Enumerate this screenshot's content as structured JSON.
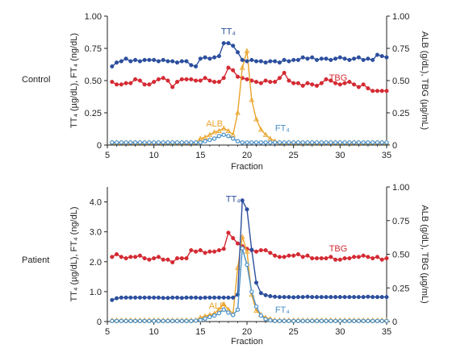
{
  "chart_data": [
    {
      "type": "line",
      "row_label": "Control",
      "xlabel": "Fraction",
      "ylabel_left": "TT₄ (µg/dL), FT₄ (ng/dL)",
      "ylabel_right": "ALB (g/dL), TBG (µg/mL)",
      "xlim": [
        5,
        35
      ],
      "ylim_left": [
        0,
        1.0
      ],
      "ylim_right": [
        0,
        1.0
      ],
      "x_ticks": [
        "5",
        "10",
        "15",
        "20",
        "25",
        "30",
        "35"
      ],
      "y_ticks_left": [
        "0",
        "0.25",
        "0.50",
        "0.75",
        "1.00"
      ],
      "y_ticks_right": [
        "0",
        "0.25",
        "0.50",
        "0.75",
        "1.00"
      ],
      "x": [
        5.5,
        6,
        6.5,
        7,
        7.5,
        8,
        8.5,
        9,
        9.5,
        10,
        10.5,
        11,
        11.5,
        12,
        12.5,
        13,
        13.5,
        14,
        14.5,
        15,
        15.5,
        16,
        16.5,
        17,
        17.5,
        18,
        18.5,
        19,
        19.5,
        20,
        20.5,
        21,
        21.5,
        22,
        22.5,
        23,
        23.5,
        24,
        24.5,
        25,
        25.5,
        26,
        26.5,
        27,
        27.5,
        28,
        28.5,
        29,
        29.5,
        30,
        30.5,
        31,
        31.5,
        32,
        32.5,
        33,
        33.5,
        34,
        34.5,
        35
      ],
      "series": [
        {
          "name": "TT₄",
          "axis": "left",
          "color": "#2c4f9e",
          "marker": "circle",
          "label_x": 18.0,
          "label_y": 0.86,
          "values": [
            0.61,
            0.64,
            0.65,
            0.67,
            0.65,
            0.66,
            0.65,
            0.66,
            0.66,
            0.66,
            0.65,
            0.66,
            0.65,
            0.65,
            0.64,
            0.65,
            0.65,
            0.62,
            0.61,
            0.67,
            0.68,
            0.67,
            0.68,
            0.69,
            0.79,
            0.79,
            0.77,
            0.72,
            0.66,
            0.65,
            0.66,
            0.65,
            0.65,
            0.64,
            0.65,
            0.65,
            0.64,
            0.66,
            0.65,
            0.66,
            0.66,
            0.68,
            0.67,
            0.68,
            0.66,
            0.67,
            0.67,
            0.66,
            0.67,
            0.68,
            0.67,
            0.66,
            0.67,
            0.68,
            0.66,
            0.67,
            0.66,
            0.7,
            0.69,
            0.68
          ]
        },
        {
          "name": "TBG",
          "axis": "right",
          "color": "#d42a33",
          "marker": "circle",
          "label_x": 29.8,
          "label_y": 0.5,
          "values": [
            0.49,
            0.47,
            0.47,
            0.48,
            0.48,
            0.51,
            0.5,
            0.47,
            0.47,
            0.49,
            0.51,
            0.52,
            0.5,
            0.45,
            0.49,
            0.51,
            0.51,
            0.51,
            0.5,
            0.5,
            0.52,
            0.5,
            0.49,
            0.49,
            0.52,
            0.6,
            0.58,
            0.53,
            0.52,
            0.51,
            0.5,
            0.49,
            0.48,
            0.5,
            0.49,
            0.49,
            0.52,
            0.56,
            0.5,
            0.48,
            0.48,
            0.46,
            0.48,
            0.47,
            0.46,
            0.48,
            0.51,
            0.5,
            0.48,
            0.47,
            0.48,
            0.49,
            0.47,
            0.45,
            0.47,
            0.44,
            0.42,
            0.42,
            0.42,
            0.42
          ]
        },
        {
          "name": "ALB",
          "axis": "right",
          "color": "#eaa32a",
          "marker": "triangle",
          "label_x": 16.5,
          "label_y": 0.145,
          "values": [
            0.02,
            0.02,
            0.02,
            0.02,
            0.02,
            0.02,
            0.02,
            0.02,
            0.02,
            0.02,
            0.02,
            0.02,
            0.02,
            0.02,
            0.02,
            0.02,
            0.02,
            0.02,
            0.02,
            0.05,
            0.06,
            0.08,
            0.1,
            0.11,
            0.13,
            0.11,
            0.08,
            0.25,
            0.6,
            0.73,
            0.35,
            0.2,
            0.12,
            0.08,
            0.05,
            0.03,
            0.02,
            0.02,
            0.02,
            0.02,
            0.02,
            0.02,
            0.02,
            0.02,
            0.02,
            0.02,
            0.02,
            0.02,
            0.02,
            0.02,
            0.02,
            0.02,
            0.02,
            0.02,
            0.02,
            0.02,
            0.02,
            0.02,
            0.02,
            0.02
          ]
        },
        {
          "name": "FT₄",
          "axis": "left",
          "color": "#4a90c8",
          "marker": "open-circle",
          "label_x": 23.8,
          "label_y": 0.11,
          "values": [
            0.02,
            0.02,
            0.02,
            0.02,
            0.02,
            0.02,
            0.02,
            0.02,
            0.02,
            0.02,
            0.02,
            0.02,
            0.02,
            0.02,
            0.02,
            0.02,
            0.02,
            0.02,
            0.02,
            0.02,
            0.03,
            0.04,
            0.05,
            0.07,
            0.08,
            0.07,
            0.05,
            0.03,
            0.02,
            0.02,
            0.02,
            0.02,
            0.02,
            0.02,
            0.02,
            0.02,
            0.02,
            0.02,
            0.02,
            0.02,
            0.02,
            0.02,
            0.02,
            0.02,
            0.02,
            0.02,
            0.02,
            0.02,
            0.02,
            0.02,
            0.02,
            0.02,
            0.02,
            0.02,
            0.02,
            0.02,
            0.02,
            0.02,
            0.02,
            0.02
          ]
        }
      ]
    },
    {
      "type": "line",
      "row_label": "Patient",
      "xlabel": "Fraction",
      "ylabel_left": "TT₄ (µg/dL), FT₄ (ng/dL)",
      "ylabel_right": "ALB (g/dL), TBG (µg/mL)",
      "xlim": [
        5,
        35
      ],
      "ylim_left": [
        0,
        4.5
      ],
      "ylim_right": [
        0,
        1.0
      ],
      "x_ticks": [
        "5",
        "10",
        "15",
        "20",
        "25",
        "30",
        "35"
      ],
      "y_ticks_left": [
        "0",
        "1.0",
        "2.0",
        "3.0",
        "4.0"
      ],
      "y_ticks_right": [
        "0",
        "0.25",
        "0.50",
        "0.75",
        "1.00"
      ],
      "x": [
        5.5,
        6,
        6.5,
        7,
        7.5,
        8,
        8.5,
        9,
        9.5,
        10,
        10.5,
        11,
        11.5,
        12,
        12.5,
        13,
        13.5,
        14,
        14.5,
        15,
        15.5,
        16,
        16.5,
        17,
        17.5,
        18,
        18.5,
        19,
        19.5,
        20,
        20.5,
        21,
        21.5,
        22,
        22.5,
        23,
        23.5,
        24,
        24.5,
        25,
        25.5,
        26,
        26.5,
        27,
        27.5,
        28,
        28.5,
        29,
        29.5,
        30,
        30.5,
        31,
        31.5,
        32,
        32.5,
        33,
        33.5,
        34,
        34.5,
        35
      ],
      "series": [
        {
          "name": "TT₄",
          "axis": "left",
          "color": "#2c4f9e",
          "marker": "circle",
          "label_x": 18.5,
          "label_y": 4.0,
          "values": [
            0.72,
            0.78,
            0.8,
            0.8,
            0.8,
            0.8,
            0.8,
            0.8,
            0.8,
            0.8,
            0.8,
            0.79,
            0.79,
            0.8,
            0.8,
            0.79,
            0.8,
            0.8,
            0.8,
            0.79,
            0.8,
            0.8,
            0.8,
            0.8,
            0.8,
            0.8,
            0.8,
            0.9,
            4.05,
            3.75,
            2.4,
            1.3,
            0.95,
            0.88,
            0.85,
            0.83,
            0.82,
            0.82,
            0.82,
            0.81,
            0.82,
            0.82,
            0.83,
            0.82,
            0.82,
            0.82,
            0.82,
            0.82,
            0.82,
            0.82,
            0.82,
            0.82,
            0.82,
            0.82,
            0.82,
            0.83,
            0.82,
            0.82,
            0.82,
            0.82
          ]
        },
        {
          "name": "TBG",
          "axis": "right",
          "color": "#d42a33",
          "marker": "circle",
          "label_x": 29.8,
          "label_y": 0.52,
          "values": [
            0.48,
            0.5,
            0.48,
            0.47,
            0.48,
            0.48,
            0.49,
            0.47,
            0.46,
            0.47,
            0.48,
            0.46,
            0.46,
            0.44,
            0.47,
            0.47,
            0.47,
            0.53,
            0.52,
            0.53,
            0.51,
            0.52,
            0.52,
            0.53,
            0.54,
            0.66,
            0.62,
            0.58,
            0.56,
            0.54,
            0.53,
            0.52,
            0.53,
            0.53,
            0.51,
            0.49,
            0.48,
            0.48,
            0.49,
            0.49,
            0.5,
            0.48,
            0.49,
            0.47,
            0.47,
            0.47,
            0.47,
            0.48,
            0.46,
            0.46,
            0.47,
            0.47,
            0.48,
            0.48,
            0.49,
            0.48,
            0.47,
            0.48,
            0.46,
            0.47
          ]
        },
        {
          "name": "ALB",
          "axis": "right",
          "color": "#eaa32a",
          "marker": "triangle",
          "label_x": 16.8,
          "label_y": 0.095,
          "values": [
            0.01,
            0.01,
            0.01,
            0.01,
            0.01,
            0.01,
            0.01,
            0.01,
            0.01,
            0.01,
            0.01,
            0.01,
            0.01,
            0.01,
            0.01,
            0.01,
            0.01,
            0.01,
            0.01,
            0.03,
            0.04,
            0.05,
            0.06,
            0.09,
            0.13,
            0.09,
            0.06,
            0.4,
            0.63,
            0.52,
            0.2,
            0.08,
            0.05,
            0.03,
            0.02,
            0.01,
            0.01,
            0.01,
            0.01,
            0.01,
            0.01,
            0.01,
            0.01,
            0.01,
            0.01,
            0.01,
            0.01,
            0.01,
            0.01,
            0.01,
            0.01,
            0.01,
            0.01,
            0.01,
            0.01,
            0.01,
            0.01,
            0.01,
            0.01,
            0.01
          ]
        },
        {
          "name": "FT₄",
          "axis": "left",
          "color": "#4a90c8",
          "marker": "open-circle",
          "label_x": 23.8,
          "label_y": 0.3,
          "values": [
            0.02,
            0.02,
            0.02,
            0.02,
            0.02,
            0.02,
            0.02,
            0.02,
            0.02,
            0.02,
            0.02,
            0.02,
            0.02,
            0.02,
            0.02,
            0.02,
            0.02,
            0.02,
            0.03,
            0.05,
            0.1,
            0.15,
            0.2,
            0.28,
            0.4,
            0.3,
            0.22,
            0.4,
            2.45,
            1.9,
            1.0,
            0.5,
            0.2,
            0.08,
            0.04,
            0.02,
            0.02,
            0.02,
            0.02,
            0.02,
            0.02,
            0.02,
            0.02,
            0.02,
            0.02,
            0.02,
            0.02,
            0.02,
            0.02,
            0.02,
            0.02,
            0.02,
            0.02,
            0.02,
            0.02,
            0.02,
            0.02,
            0.02,
            0.02,
            0.02
          ]
        }
      ]
    }
  ]
}
